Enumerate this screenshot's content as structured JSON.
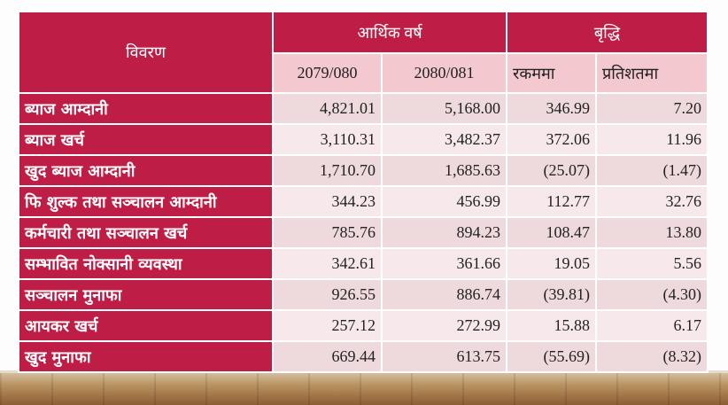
{
  "header": {
    "description_label": "विवरण",
    "fiscal_year_label": "आर्थिक वर्ष",
    "growth_label": "बृद्धि",
    "year1": "2079/080",
    "year2": "2080/081",
    "amount_label": "रकममा",
    "percent_label": "प्रतिशतमा"
  },
  "rows": [
    {
      "label": "ब्याज आम्दानी",
      "y1": "4,821.01",
      "y2": "5,168.00",
      "amount": "346.99",
      "percent": "7.20"
    },
    {
      "label": "ब्याज खर्च",
      "y1": "3,110.31",
      "y2": "3,482.37",
      "amount": "372.06",
      "percent": "11.96"
    },
    {
      "label": "खुद ब्याज आम्दानी",
      "y1": "1,710.70",
      "y2": "1,685.63",
      "amount": "(25.07)",
      "percent": "(1.47)"
    },
    {
      "label": "फि शुल्क तथा सञ्चालन आम्दानी",
      "y1": "344.23",
      "y2": "456.99",
      "amount": "112.77",
      "percent": "32.76"
    },
    {
      "label": "कर्मचारी तथा सञ्चालन खर्च",
      "y1": "785.76",
      "y2": "894.23",
      "amount": "108.47",
      "percent": "13.80"
    },
    {
      "label": "सम्भावित नोक्सानी व्यवस्था",
      "y1": "342.61",
      "y2": "361.66",
      "amount": "19.05",
      "percent": "5.56"
    },
    {
      "label": "सञ्चालन मुनाफा",
      "y1": "926.55",
      "y2": "886.74",
      "amount": "(39.81)",
      "percent": "(4.30)"
    },
    {
      "label": "आयकर खर्च",
      "y1": "257.12",
      "y2": "272.99",
      "amount": "15.88",
      "percent": "6.17"
    },
    {
      "label": "खुद मुनाफा",
      "y1": "669.44",
      "y2": "613.75",
      "amount": "(55.69)",
      "percent": "(8.32)"
    }
  ],
  "colors": {
    "header_red": "#be1e46",
    "subheader_pink": "#f3c8cf",
    "row_shade_a": "#eed9dc",
    "row_shade_b": "#f7e9eb"
  }
}
